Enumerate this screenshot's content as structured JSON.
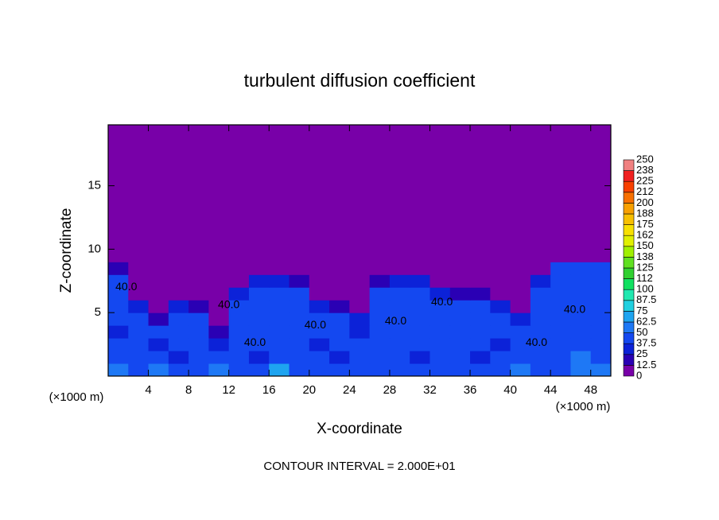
{
  "chart_data": {
    "type": "heatmap",
    "title": "turbulent diffusion coefficient",
    "x_label": "X-coordinate",
    "y_label": "Z-coordinate",
    "x_unit": "(×1000 m)",
    "footer": "CONTOUR INTERVAL = 2.000E+01",
    "xlim": [
      0,
      50
    ],
    "ylim": [
      0,
      19.8
    ],
    "xticks": [
      4,
      8,
      12,
      16,
      20,
      24,
      28,
      32,
      36,
      40,
      44,
      48
    ],
    "yticks": [
      5,
      10,
      15
    ],
    "x_edges": [
      0,
      2,
      4,
      6,
      8,
      10,
      12,
      14,
      16,
      18,
      20,
      22,
      24,
      26,
      28,
      30,
      32,
      34,
      36,
      38,
      40,
      42,
      44,
      46,
      48,
      50
    ],
    "z_edges": [
      0,
      1,
      2,
      3,
      4,
      5,
      6,
      7,
      8,
      9,
      10,
      19.8
    ],
    "values": [
      [
        55,
        40,
        60,
        38,
        42,
        50,
        45,
        38,
        65,
        40,
        42,
        38,
        45,
        40,
        42,
        38,
        40,
        45,
        38,
        42,
        50,
        40,
        45,
        60,
        55
      ],
      [
        40,
        38,
        45,
        36,
        40,
        42,
        38,
        36,
        44,
        38,
        40,
        36,
        42,
        38,
        40,
        36,
        38,
        42,
        36,
        40,
        45,
        38,
        42,
        50,
        40
      ],
      [
        38,
        42,
        36,
        40,
        38,
        30,
        44,
        40,
        42,
        38,
        36,
        40,
        38,
        44,
        40,
        38,
        42,
        40,
        38,
        36,
        42,
        44,
        40,
        38,
        42
      ],
      [
        36,
        40,
        38,
        42,
        40,
        20,
        40,
        38,
        42,
        40,
        38,
        42,
        36,
        40,
        38,
        42,
        40,
        38,
        42,
        40,
        38,
        40,
        42,
        38,
        40
      ],
      [
        38,
        40,
        20,
        40,
        42,
        5,
        44,
        40,
        38,
        42,
        40,
        42,
        25,
        40,
        44,
        40,
        38,
        42,
        40,
        38,
        25,
        42,
        40,
        38,
        42
      ],
      [
        40,
        25,
        5,
        25,
        20,
        5,
        40,
        38,
        42,
        40,
        25,
        20,
        5,
        42,
        40,
        38,
        40,
        38,
        40,
        25,
        5,
        40,
        42,
        40,
        38
      ],
      [
        42,
        5,
        5,
        5,
        5,
        5,
        25,
        40,
        40,
        38,
        5,
        5,
        5,
        40,
        42,
        40,
        25,
        22,
        22,
        5,
        5,
        42,
        40,
        38,
        40
      ],
      [
        38,
        5,
        5,
        5,
        5,
        5,
        5,
        30,
        30,
        22,
        5,
        5,
        5,
        22,
        30,
        30,
        5,
        5,
        5,
        5,
        5,
        30,
        40,
        42,
        38
      ],
      [
        22,
        5,
        5,
        5,
        5,
        5,
        5,
        5,
        5,
        5,
        5,
        5,
        5,
        5,
        5,
        5,
        5,
        5,
        5,
        5,
        5,
        5,
        38,
        40,
        38
      ],
      [
        5,
        5,
        5,
        5,
        5,
        5,
        5,
        5,
        5,
        5,
        5,
        5,
        5,
        5,
        5,
        5,
        5,
        5,
        5,
        5,
        5,
        5,
        5,
        5,
        5
      ],
      [
        5,
        5,
        5,
        5,
        5,
        5,
        5,
        5,
        5,
        5,
        5,
        5,
        5,
        5,
        5,
        5,
        5,
        5,
        5,
        5,
        5,
        5,
        5,
        5,
        5
      ]
    ],
    "levels": [
      0,
      12.5,
      25,
      37.5,
      50,
      62.5,
      75,
      87.5,
      100,
      {
        "value": 112.5,
        "label": "112"
      },
      125,
      {
        "value": 137.5,
        "label": "138"
      },
      150,
      {
        "value": 162.5,
        "label": "162"
      },
      175,
      {
        "value": 187.5,
        "label": "188"
      },
      200,
      {
        "value": 212.5,
        "label": "212"
      },
      225,
      {
        "value": 237.5,
        "label": "238"
      },
      250
    ],
    "colors": [
      "#7800a8",
      "#2a00b4",
      "#0c22d8",
      "#1448f0",
      "#1e78f5",
      "#1ea4f0",
      "#20d0e0",
      "#20e8b0",
      "#10e060",
      "#30d030",
      "#60e020",
      "#a0f000",
      "#e0f000",
      "#f8e000",
      "#f8c000",
      "#f8a000",
      "#f87000",
      "#f84000",
      "#f02020",
      "#f08080"
    ],
    "contour_labels": [
      {
        "text": "40.0",
        "x": 12,
        "z": 5.6
      },
      {
        "text": "40.0",
        "x": 20.6,
        "z": 4
      },
      {
        "text": "40.0",
        "x": 28.6,
        "z": 4.3
      },
      {
        "text": "40.0",
        "x": 33.2,
        "z": 5.8
      },
      {
        "text": "40.0",
        "x": 14.6,
        "z": 2.6
      },
      {
        "text": "40.0",
        "x": 46.4,
        "z": 5.2
      },
      {
        "text": "40.0",
        "x": 42.6,
        "z": 2.6
      },
      {
        "text": "40.0",
        "x": 1.8,
        "z": 7
      }
    ]
  }
}
